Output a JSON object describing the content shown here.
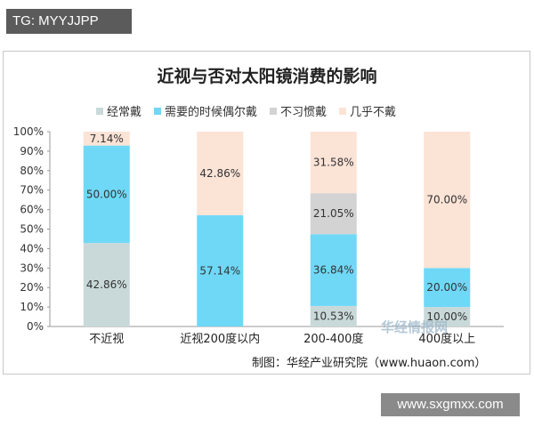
{
  "badge": {
    "text": "TG: MYYJJPP"
  },
  "watermark": {
    "url": "www.sxgmxx.com",
    "logo_text": "华经情报网"
  },
  "source": {
    "text": "制图：华经产业研究院（www.huaon.com）"
  },
  "colors": {
    "often": "#c9d9d9",
    "when_needed": "#6fd8f6",
    "not_used_to": "#d3d3d3",
    "almost_never": "#fbe3d6",
    "axis": "#999999",
    "text": "#333333"
  },
  "chart_data": {
    "type": "bar",
    "stacked": true,
    "title": "近视与否对太阳镜消费的影响",
    "categories": [
      "不近视",
      "近视200度以内",
      "200-400度",
      "400度以上"
    ],
    "ylim": [
      0,
      100
    ],
    "yticks": [
      "0%",
      "10%",
      "20%",
      "30%",
      "40%",
      "50%",
      "60%",
      "70%",
      "80%",
      "90%",
      "100%"
    ],
    "legend_position": "top",
    "series": [
      {
        "name": "经常戴",
        "color_key": "often",
        "values": [
          42.86,
          0,
          10.53,
          10.0
        ],
        "labels": [
          "42.86%",
          "",
          "10.53%",
          "10.00%"
        ]
      },
      {
        "name": "需要的时候偶尔戴",
        "color_key": "when_needed",
        "values": [
          50.0,
          57.14,
          36.84,
          20.0
        ],
        "labels": [
          "50.00%",
          "57.14%",
          "36.84%",
          "20.00%"
        ]
      },
      {
        "name": "不习惯戴",
        "color_key": "not_used_to",
        "values": [
          0,
          0,
          21.05,
          0
        ],
        "labels": [
          "",
          "",
          "21.05%",
          ""
        ]
      },
      {
        "name": "几乎不戴",
        "color_key": "almost_never",
        "values": [
          7.14,
          42.86,
          31.58,
          70.0
        ],
        "labels": [
          "7.14%",
          "42.86%",
          "31.58%",
          "70.00%"
        ]
      }
    ]
  }
}
